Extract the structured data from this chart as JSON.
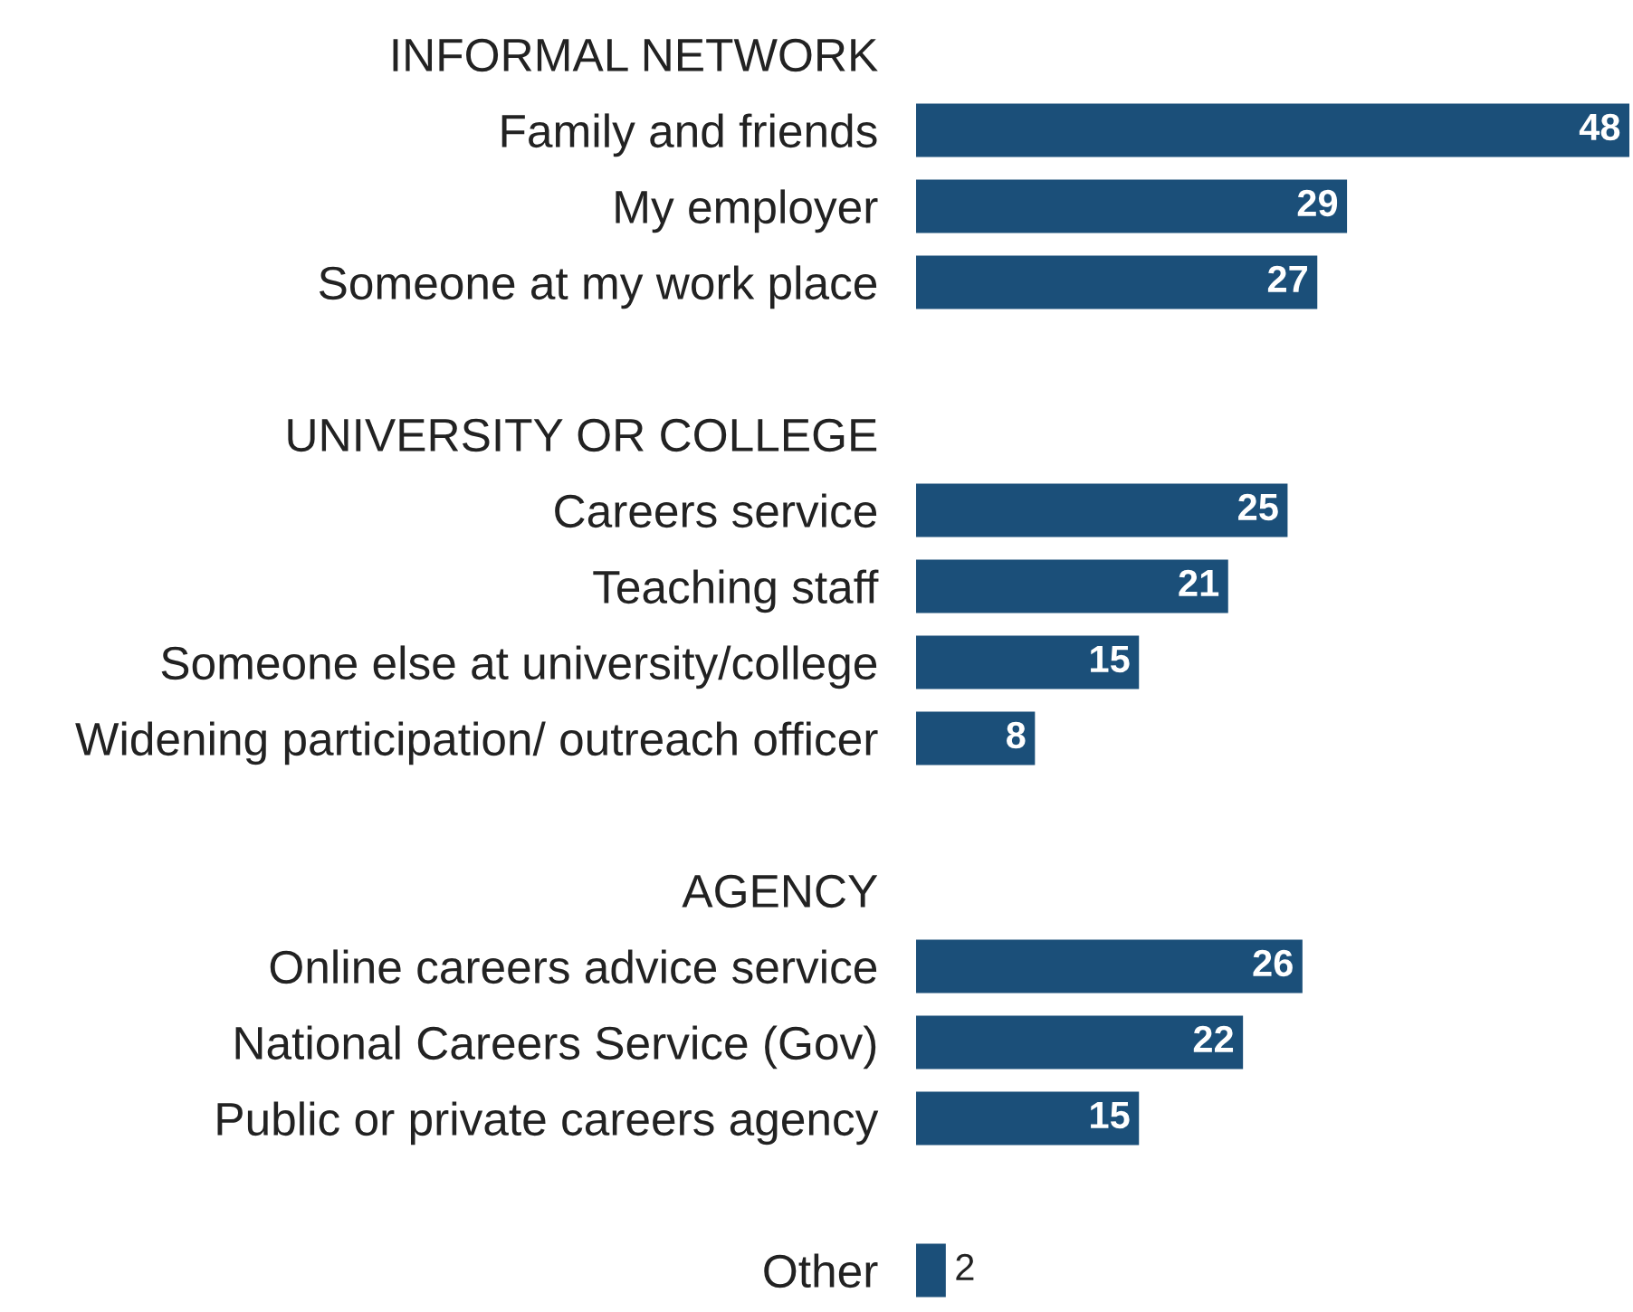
{
  "chart_data": {
    "type": "bar",
    "orientation": "horizontal",
    "categories": [
      "INFORMAL NETWORK",
      "Family and friends",
      "My employer",
      "Someone at my work place",
      null,
      "UNIVERSITY OR COLLEGE",
      "Careers service",
      "Teaching staff",
      "Someone else at university/college",
      "Widening participation/ outreach officer",
      null,
      "AGENCY",
      "Online careers advice service",
      "National Careers Service (Gov)",
      "Public or private careers agency",
      null,
      "Other"
    ],
    "values": [
      null,
      48,
      29,
      27,
      null,
      null,
      25,
      21,
      15,
      8,
      null,
      null,
      26,
      22,
      15,
      null,
      2
    ],
    "color": "#1b4f79",
    "data_labels": true,
    "tick_labels": "y",
    "grid": false,
    "legend": false
  }
}
